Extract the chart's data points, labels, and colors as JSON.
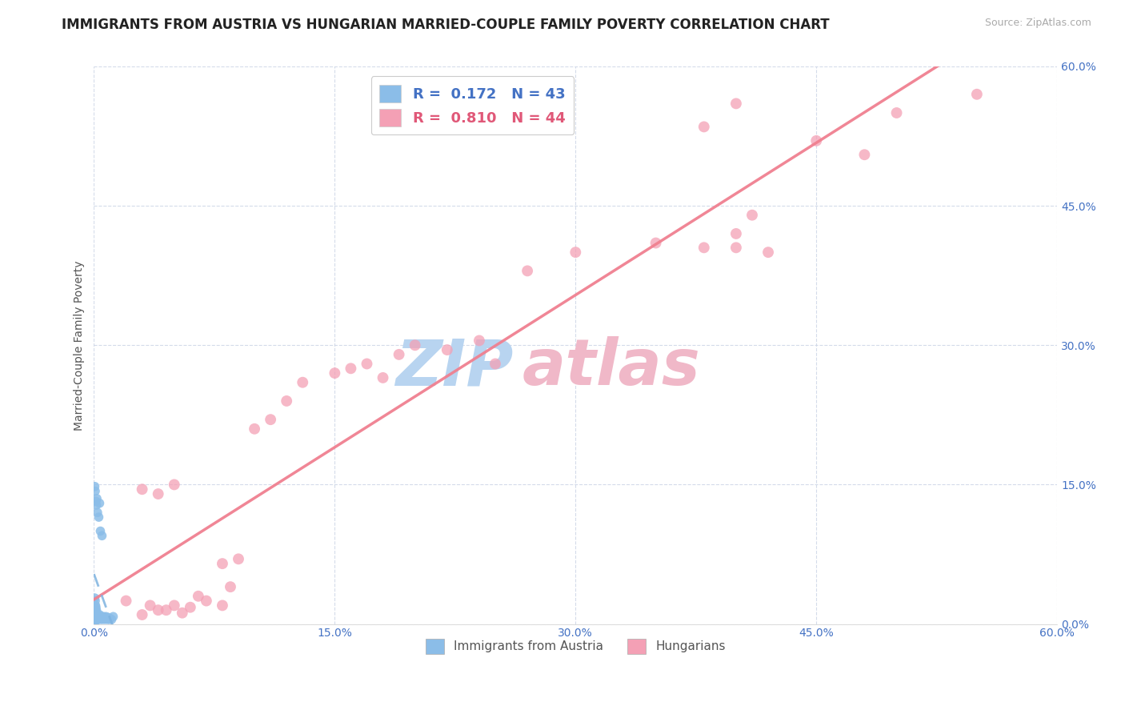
{
  "title": "IMMIGRANTS FROM AUSTRIA VS HUNGARIAN MARRIED-COUPLE FAMILY POVERTY CORRELATION CHART",
  "source": "Source: ZipAtlas.com",
  "ylabel": "Married-Couple Family Poverty",
  "ytick_vals": [
    0,
    15,
    30,
    45,
    60
  ],
  "xtick_vals": [
    0,
    15,
    30,
    45,
    60
  ],
  "xlim": [
    0,
    60
  ],
  "ylim": [
    0,
    60
  ],
  "legend1_R": "0.172",
  "legend1_N": "43",
  "legend2_R": "0.810",
  "legend2_N": "44",
  "austria_color": "#8bbde8",
  "hungarian_color": "#f4a0b5",
  "austria_scatter": [
    [
      0.05,
      14.8
    ],
    [
      0.08,
      14.3
    ],
    [
      0.12,
      13.2
    ],
    [
      0.15,
      12.8
    ],
    [
      0.18,
      13.5
    ],
    [
      0.22,
      12.0
    ],
    [
      0.3,
      11.5
    ],
    [
      0.35,
      13.0
    ],
    [
      0.4,
      10.0
    ],
    [
      0.5,
      9.5
    ],
    [
      0.05,
      2.8
    ],
    [
      0.08,
      2.5
    ],
    [
      0.1,
      2.0
    ],
    [
      0.12,
      1.8
    ],
    [
      0.15,
      1.5
    ],
    [
      0.18,
      1.2
    ],
    [
      0.2,
      1.0
    ],
    [
      0.22,
      0.8
    ],
    [
      0.25,
      0.7
    ],
    [
      0.28,
      0.5
    ],
    [
      0.3,
      0.8
    ],
    [
      0.35,
      1.0
    ],
    [
      0.38,
      0.6
    ],
    [
      0.42,
      0.5
    ],
    [
      0.45,
      0.8
    ],
    [
      0.5,
      0.7
    ],
    [
      0.55,
      0.5
    ],
    [
      0.6,
      0.8
    ],
    [
      0.65,
      0.7
    ],
    [
      0.7,
      0.5
    ],
    [
      0.75,
      0.8
    ],
    [
      0.8,
      0.6
    ],
    [
      0.85,
      0.5
    ],
    [
      0.9,
      0.7
    ],
    [
      0.95,
      0.5
    ],
    [
      1.0,
      0.6
    ],
    [
      1.1,
      0.5
    ],
    [
      1.2,
      0.8
    ],
    [
      0.02,
      0.3
    ],
    [
      0.02,
      0.2
    ],
    [
      0.03,
      0.1
    ],
    [
      0.03,
      0.4
    ],
    [
      0.04,
      0.2
    ]
  ],
  "hungarian_scatter": [
    [
      2.0,
      2.5
    ],
    [
      3.5,
      2.0
    ],
    [
      4.0,
      1.5
    ],
    [
      5.0,
      2.0
    ],
    [
      6.0,
      1.8
    ],
    [
      7.0,
      2.5
    ],
    [
      8.0,
      2.0
    ],
    [
      3.0,
      1.0
    ],
    [
      4.5,
      1.5
    ],
    [
      5.5,
      1.2
    ],
    [
      6.5,
      3.0
    ],
    [
      8.5,
      4.0
    ],
    [
      3.0,
      14.5
    ],
    [
      4.0,
      14.0
    ],
    [
      5.0,
      15.0
    ],
    [
      10.0,
      21.0
    ],
    [
      11.0,
      22.0
    ],
    [
      12.0,
      24.0
    ],
    [
      13.0,
      26.0
    ],
    [
      15.0,
      27.0
    ],
    [
      16.0,
      27.5
    ],
    [
      17.0,
      28.0
    ],
    [
      18.0,
      26.5
    ],
    [
      19.0,
      29.0
    ],
    [
      20.0,
      30.0
    ],
    [
      22.0,
      29.5
    ],
    [
      24.0,
      30.5
    ],
    [
      25.0,
      28.0
    ],
    [
      27.0,
      38.0
    ],
    [
      30.0,
      40.0
    ],
    [
      35.0,
      41.0
    ],
    [
      38.0,
      40.5
    ],
    [
      40.0,
      42.0
    ],
    [
      40.0,
      40.5
    ],
    [
      41.0,
      44.0
    ],
    [
      42.0,
      40.0
    ],
    [
      45.0,
      52.0
    ],
    [
      48.0,
      50.5
    ],
    [
      38.0,
      53.5
    ],
    [
      40.0,
      56.0
    ],
    [
      50.0,
      55.0
    ],
    [
      55.0,
      57.0
    ],
    [
      8.0,
      6.5
    ],
    [
      9.0,
      7.0
    ]
  ],
  "austria_line_color": "#7eb3e0",
  "hungarian_line_color": "#f08090",
  "watermark_part1": "ZIP",
  "watermark_part2": "atlas",
  "watermark_color1": "#b8d4f0",
  "watermark_color2": "#f0b8c8",
  "legend_label1": "Immigrants from Austria",
  "legend_label2": "Hungarians",
  "title_fontsize": 12,
  "axis_label_color": "#4472c4",
  "legend_text_color1": "#4472c4",
  "legend_text_color2": "#e05878",
  "background_color": "#ffffff",
  "grid_color": "#d0d8e8"
}
